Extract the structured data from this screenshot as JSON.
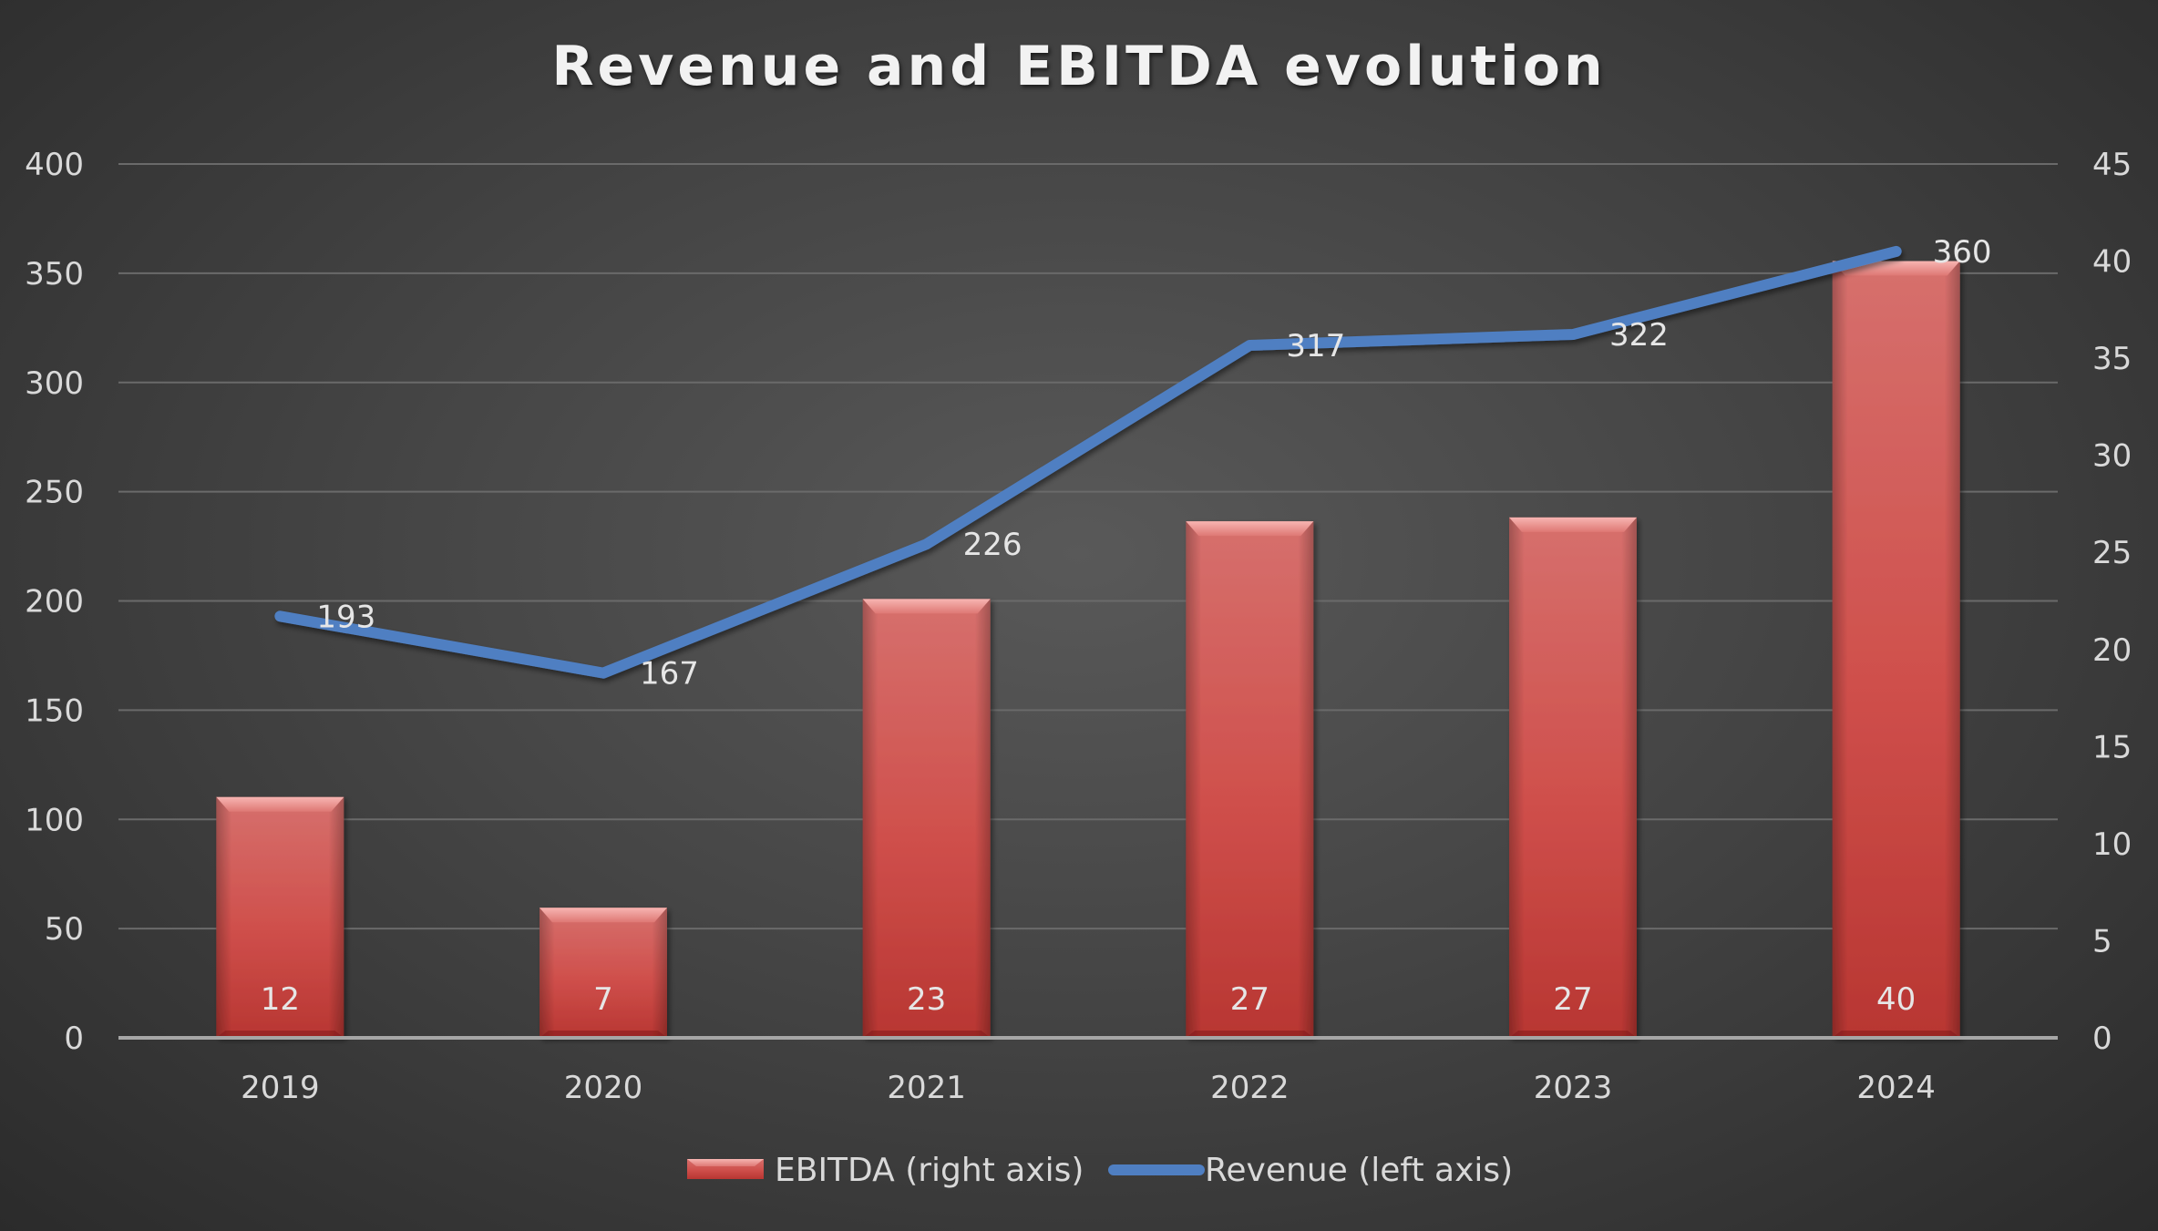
{
  "chart_data": {
    "type": "bar",
    "title": "Revenue and EBITDA evolution",
    "categories": [
      "2019",
      "2020",
      "2021",
      "2022",
      "2023",
      "2024"
    ],
    "series": [
      {
        "name": "EBITDA (right axis)",
        "type": "bar",
        "axis": "right",
        "values": [
          12,
          7,
          23,
          27,
          27,
          40
        ],
        "display_values": [
          12.4,
          6.7,
          22.6,
          26.6,
          26.8,
          40.0
        ],
        "color": "#c0504d"
      },
      {
        "name": "Revenue (left axis)",
        "type": "line",
        "axis": "left",
        "values": [
          193,
          167,
          226,
          317,
          322,
          360
        ],
        "color": "#4f7fc2"
      }
    ],
    "y_left": {
      "min": 0,
      "max": 400,
      "step": 50,
      "ticks": [
        "0",
        "50",
        "100",
        "150",
        "200",
        "250",
        "300",
        "350",
        "400"
      ]
    },
    "y_right": {
      "min": 0,
      "max": 45,
      "step": 5,
      "ticks": [
        "0",
        "5",
        "10",
        "15",
        "20",
        "25",
        "30",
        "35",
        "40",
        "45"
      ]
    },
    "grid": true,
    "legend": {
      "position": "bottom"
    }
  }
}
